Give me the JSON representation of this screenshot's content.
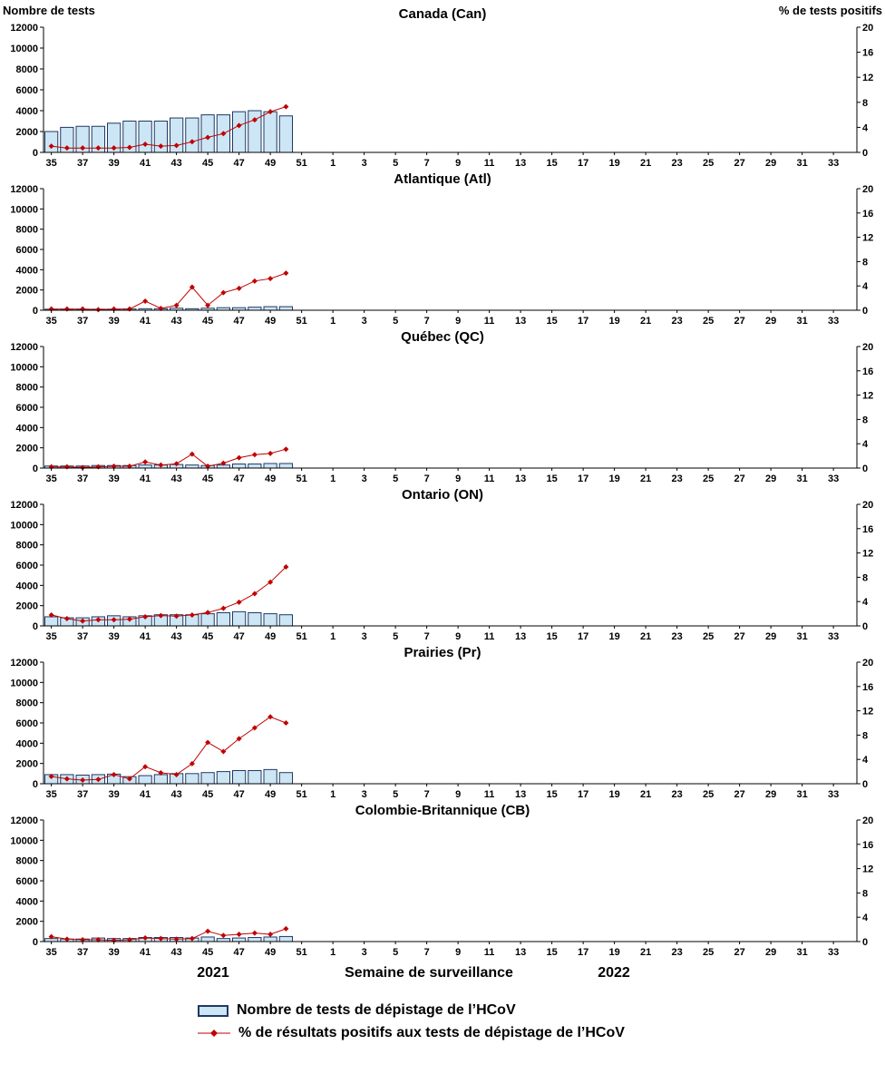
{
  "axis": {
    "left_label": "Nombre de tests",
    "right_label": "% de tests positifs",
    "x_label": "Semaine de surveillance",
    "year_left": "2021",
    "year_right": "2022",
    "y_left_ticks": [
      0,
      2000,
      4000,
      6000,
      8000,
      10000,
      12000
    ],
    "y_right_ticks": [
      0,
      4,
      8,
      12,
      16,
      20
    ],
    "x_tick_labels": [
      "35",
      "37",
      "39",
      "41",
      "43",
      "45",
      "47",
      "49",
      "51",
      "1",
      "3",
      "5",
      "7",
      "9",
      "11",
      "13",
      "15",
      "17",
      "19",
      "21",
      "23",
      "25",
      "27",
      "29",
      "31",
      "33"
    ]
  },
  "legend": {
    "bar_label": "Nombre de tests de dépistage de l’HCoV",
    "line_label": "% de résultats positifs aux tests de dépistage de l’HCoV"
  },
  "colors": {
    "bar_fill": "#CDE6F5",
    "bar_border": "#1F3864",
    "line": "#C00000",
    "axis": "#000000"
  },
  "chart_data": {
    "type": "bar+line",
    "x_unit": "semaine de surveillance",
    "weeks": [
      35,
      36,
      37,
      38,
      39,
      40,
      41,
      42,
      43,
      44,
      45,
      46,
      47,
      48,
      49,
      50
    ],
    "weeks_year": 2021,
    "x_axis_span": "semaines 35–52 (2021) puis 1–34 (2022)",
    "ylim_left": [
      0,
      12000
    ],
    "ylim_right": [
      0,
      20
    ],
    "grid": false,
    "panels": [
      {
        "title": "Canada (Can)",
        "tests": [
          2000,
          2400,
          2500,
          2500,
          2800,
          3000,
          3000,
          3000,
          3300,
          3300,
          3600,
          3600,
          3900,
          4000,
          3900,
          3500
        ],
        "pct_positive": [
          1.0,
          0.7,
          0.7,
          0.7,
          0.7,
          0.8,
          1.3,
          1.0,
          1.1,
          1.7,
          2.4,
          3.0,
          4.3,
          5.2,
          6.5,
          7.3
        ]
      },
      {
        "title": "Atlantique (Atl)",
        "tests": [
          100,
          100,
          100,
          100,
          100,
          120,
          150,
          150,
          200,
          150,
          200,
          250,
          250,
          300,
          350,
          350
        ],
        "pct_positive": [
          0.2,
          0.2,
          0.2,
          0.1,
          0.2,
          0.2,
          1.5,
          0.3,
          0.8,
          3.8,
          0.8,
          2.9,
          3.6,
          4.8,
          5.2,
          6.1
        ]
      },
      {
        "title": "Québec (QC)",
        "tests": [
          200,
          200,
          200,
          250,
          250,
          250,
          300,
          300,
          350,
          300,
          250,
          300,
          400,
          400,
          450,
          450
        ],
        "pct_positive": [
          0.2,
          0.2,
          0.1,
          0.2,
          0.3,
          0.3,
          1.0,
          0.5,
          0.7,
          2.3,
          0.3,
          0.8,
          1.7,
          2.2,
          2.4,
          3.1
        ]
      },
      {
        "title": "Ontario (ON)",
        "tests": [
          900,
          800,
          800,
          900,
          1000,
          900,
          1000,
          1100,
          1100,
          1100,
          1200,
          1300,
          1400,
          1300,
          1200,
          1100
        ],
        "pct_positive": [
          1.8,
          1.2,
          0.8,
          1.0,
          1.0,
          1.1,
          1.5,
          1.7,
          1.6,
          1.8,
          2.2,
          2.9,
          3.9,
          5.3,
          7.2,
          9.7
        ]
      },
      {
        "title": "Prairies (Pr)",
        "tests": [
          900,
          900,
          850,
          900,
          950,
          700,
          800,
          900,
          1000,
          1000,
          1100,
          1200,
          1300,
          1300,
          1400,
          1100
        ],
        "pct_positive": [
          1.2,
          0.8,
          0.6,
          0.7,
          1.5,
          0.8,
          2.8,
          1.8,
          1.5,
          3.3,
          6.8,
          5.3,
          7.4,
          9.2,
          11.0,
          10.0
        ]
      },
      {
        "title": "Colombie-Britannique (CB)",
        "tests": [
          300,
          250,
          250,
          350,
          300,
          300,
          400,
          400,
          400,
          350,
          450,
          300,
          350,
          400,
          450,
          500
        ],
        "pct_positive": [
          0.8,
          0.4,
          0.3,
          0.3,
          0.2,
          0.3,
          0.6,
          0.5,
          0.4,
          0.5,
          1.7,
          1.0,
          1.2,
          1.4,
          1.2,
          2.1
        ]
      }
    ]
  }
}
